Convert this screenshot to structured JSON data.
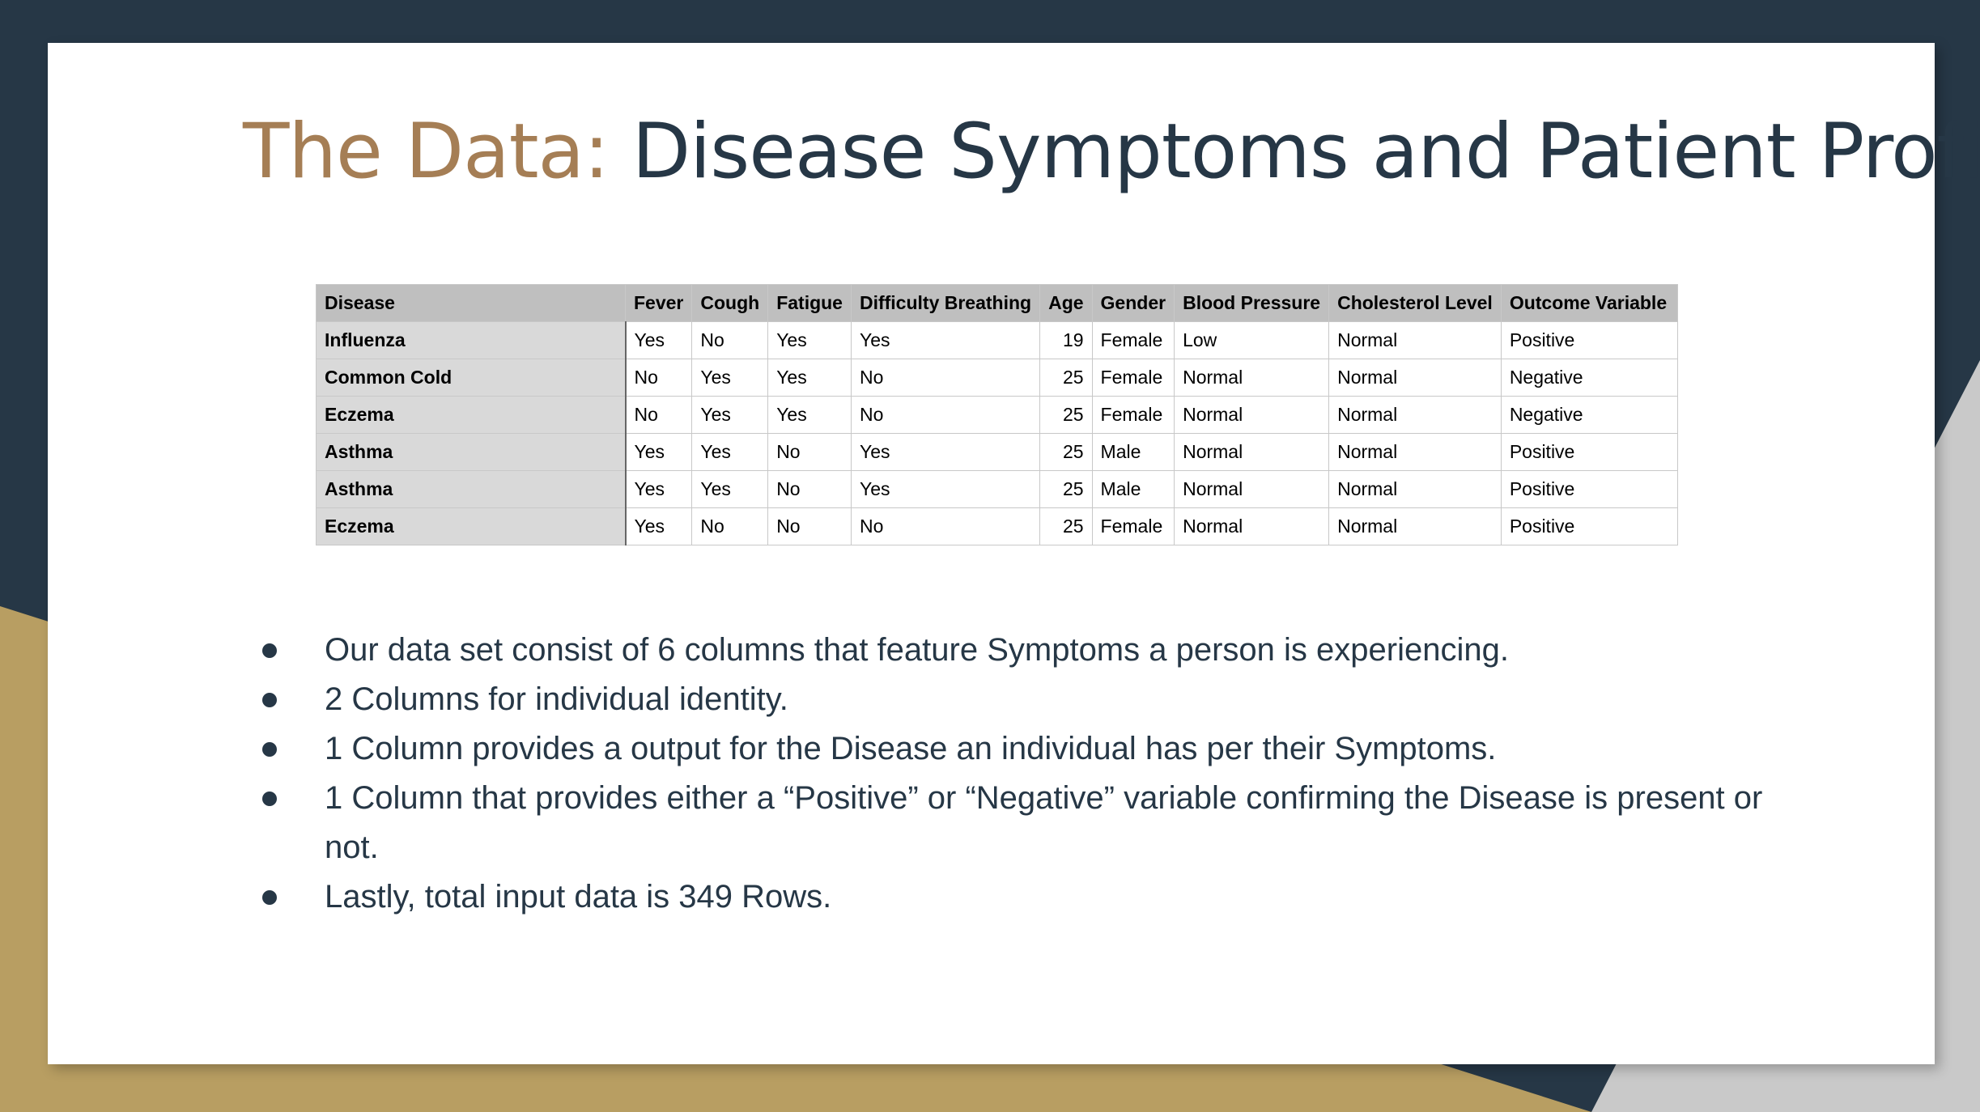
{
  "title": {
    "prefix": "The Data:",
    "main": "Disease Symptoms and Patient Profile",
    "suffix": "."
  },
  "table": {
    "header": [
      "Disease",
      "Fever",
      "Cough",
      "Fatigue",
      "Difficulty Breathing",
      "Age",
      "Gender",
      "Blood Pressure",
      "Cholesterol Level",
      "Outcome Variable"
    ],
    "rows": [
      [
        "Influenza",
        "Yes",
        "No",
        "Yes",
        "Yes",
        19,
        "Female",
        "Low",
        "Normal",
        "Positive"
      ],
      [
        "Common Cold",
        "No",
        "Yes",
        "Yes",
        "No",
        25,
        "Female",
        "Normal",
        "Normal",
        "Negative"
      ],
      [
        "Eczema",
        "No",
        "Yes",
        "Yes",
        "No",
        25,
        "Female",
        "Normal",
        "Normal",
        "Negative"
      ],
      [
        "Asthma",
        "Yes",
        "Yes",
        "No",
        "Yes",
        25,
        "Male",
        "Normal",
        "Normal",
        "Positive"
      ],
      [
        "Asthma",
        "Yes",
        "Yes",
        "No",
        "Yes",
        25,
        "Male",
        "Normal",
        "Normal",
        "Positive"
      ],
      [
        "Eczema",
        "Yes",
        "No",
        "No",
        "No",
        25,
        "Female",
        "Normal",
        "Normal",
        "Positive"
      ]
    ]
  },
  "bullets": [
    "Our data set consist of 6 columns that feature Symptoms a person is experiencing.",
    "2 Columns for individual identity.",
    "1 Column provides a output for the Disease an individual has per their  Symptoms.",
    "1 Column that provides either a “Positive” or “Negative” variable confirming the Disease is present or not.",
    "Lastly, total input data is 349 Rows."
  ]
}
